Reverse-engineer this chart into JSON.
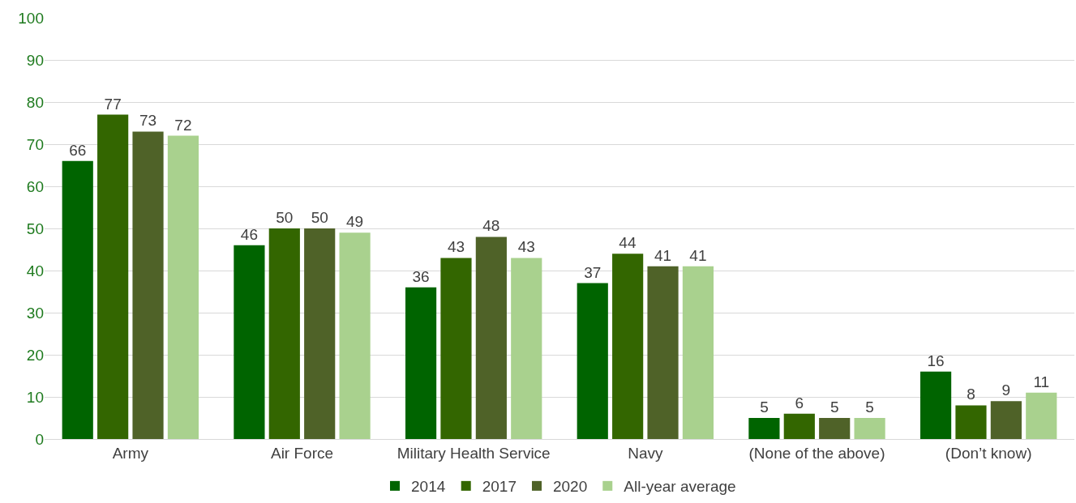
{
  "chart_data": {
    "type": "bar",
    "categories": [
      "Army",
      "Air Force",
      "Military Health Service",
      "Navy",
      "(None of the above)",
      "(Don’t know)"
    ],
    "series": [
      {
        "name": "2014",
        "color": "#006400",
        "values": [
          66,
          46,
          36,
          37,
          5,
          16
        ]
      },
      {
        "name": "2017",
        "color": "#336600",
        "values": [
          77,
          50,
          43,
          44,
          6,
          8
        ]
      },
      {
        "name": "2020",
        "color": "#4f6228",
        "values": [
          73,
          50,
          48,
          41,
          5,
          9
        ]
      },
      {
        "name": "All-year average",
        "color": "#a9d18e",
        "values": [
          72,
          49,
          43,
          41,
          5,
          11
        ]
      }
    ],
    "ylim": [
      0,
      100
    ],
    "yticks": [
      0,
      10,
      20,
      30,
      40,
      50,
      60,
      70,
      80,
      90,
      100
    ],
    "grid": "y",
    "legend": "bottom",
    "data_labels": true
  }
}
